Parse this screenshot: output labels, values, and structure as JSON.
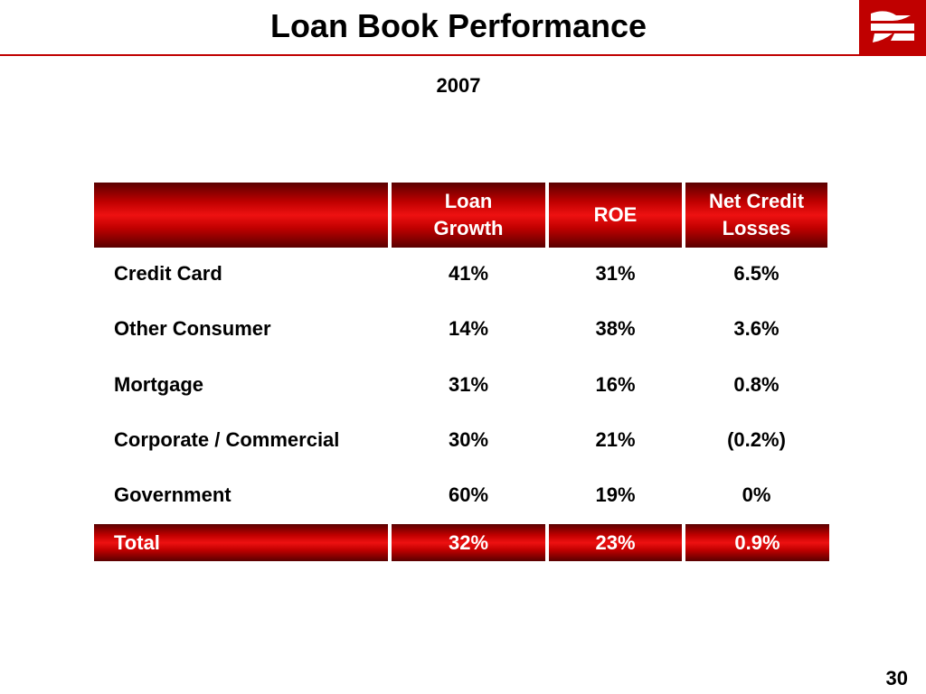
{
  "page": {
    "title": "Loan Book Performance",
    "subtitle": "2007",
    "page_number": "30"
  },
  "logo": {
    "icon": "bank-logo-icon",
    "color": "#c00000"
  },
  "table": {
    "columns": [
      "",
      "Loan Growth",
      "ROE",
      "Net Credit Losses"
    ],
    "header": {
      "loan_growth_1": "Loan",
      "loan_growth_2": "Growth",
      "roe": "ROE",
      "ncl_1": "Net Credit",
      "ncl_2": "Losses"
    },
    "rows": [
      {
        "label": "Credit Card",
        "loan_growth": "41%",
        "roe": "31%",
        "ncl": "6.5%"
      },
      {
        "label": "Other Consumer",
        "loan_growth": "14%",
        "roe": "38%",
        "ncl": "3.6%"
      },
      {
        "label": "Mortgage",
        "loan_growth": "31%",
        "roe": "16%",
        "ncl": "0.8%"
      },
      {
        "label": "Corporate / Commercial",
        "loan_growth": "30%",
        "roe": "21%",
        "ncl": "(0.2%)"
      },
      {
        "label": "Government",
        "loan_growth": "60%",
        "roe": "19%",
        "ncl": "0%"
      }
    ],
    "total": {
      "label": "Total",
      "loan_growth": "32%",
      "roe": "23%",
      "ncl": "0.9%"
    }
  },
  "colors": {
    "accent": "#c00000",
    "accent_dark": "#5a0000"
  }
}
